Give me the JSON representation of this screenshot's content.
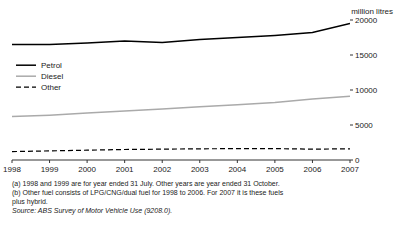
{
  "chart_data": {
    "type": "line",
    "y_label": "million litres",
    "x": [
      1998,
      1999,
      2000,
      2001,
      2002,
      2003,
      2004,
      2005,
      2006,
      2007
    ],
    "series": [
      {
        "name": "Petrol",
        "color": "#000000",
        "line_style": "solid",
        "values": [
          16500,
          16500,
          16700,
          17000,
          16800,
          17200,
          17500,
          17800,
          18200,
          19500
        ]
      },
      {
        "name": "Diesel",
        "color": "#aaaaaa",
        "line_style": "solid",
        "values": [
          6200,
          6400,
          6700,
          7000,
          7300,
          7600,
          7900,
          8200,
          8700,
          9100
        ]
      },
      {
        "name": "Other",
        "color": "#000000",
        "line_style": "dashed",
        "values": [
          1200,
          1300,
          1400,
          1500,
          1550,
          1600,
          1620,
          1630,
          1550,
          1600
        ]
      }
    ],
    "xlim": [
      1998,
      2007
    ],
    "xticks": [
      1998,
      1999,
      2000,
      2001,
      2002,
      2003,
      2004,
      2005,
      2006,
      2007
    ],
    "ylim": [
      0,
      20000
    ],
    "yticks": [
      0,
      5000,
      10000,
      15000,
      20000
    ],
    "grid": false,
    "legend": "upper left",
    "annotations": [
      "(a) 1998 and 1999 are for year ended 31 July. Other years are year ended 31 October.",
      "(b) Other fuel consists of LPG/CNG/dual fuel for 1998 to 2006. For 2007 it is these fuels",
      " plus hybrid.",
      "Source: ABS Survey of Motor Vehicle Use (9208.0)."
    ]
  }
}
